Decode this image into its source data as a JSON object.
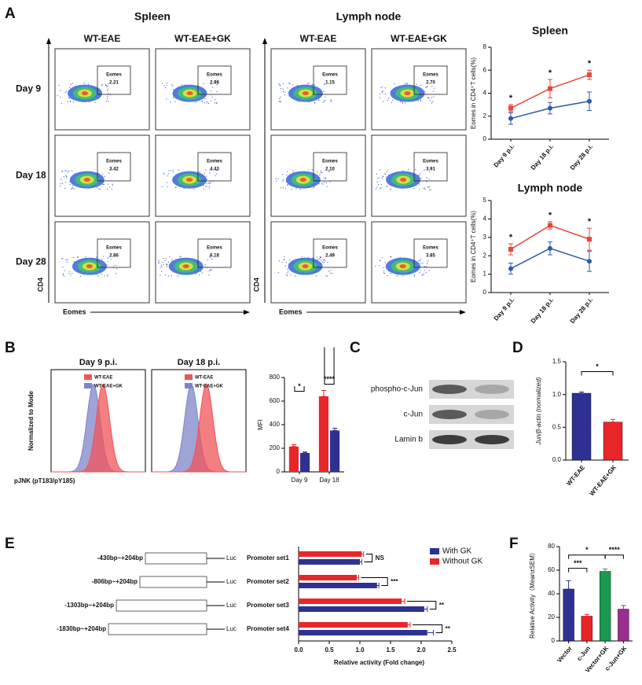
{
  "panel_labels": [
    "A",
    "B",
    "C",
    "D",
    "E",
    "F"
  ],
  "flow": {
    "groups": [
      {
        "title": "Spleen",
        "columns": [
          "WT-EAE",
          "WT-EAE+GK"
        ],
        "gates": [
          [
            "2.21",
            "2.98"
          ],
          [
            "3.42",
            "4.43"
          ],
          [
            "2.86",
            "6.18"
          ]
        ]
      },
      {
        "title": "Lymph node",
        "columns": [
          "WT-EAE",
          "WT-EAE+GK"
        ],
        "gates": [
          [
            "1.15",
            "2.70"
          ],
          [
            "2.10",
            "3.91"
          ],
          [
            "2.49",
            "3.85"
          ]
        ]
      }
    ],
    "rows": [
      "Day 9",
      "Day 18",
      "Day 28"
    ],
    "gate_label": "Eomes",
    "x_label": "Eomes",
    "y_label": "CD4"
  },
  "histograms": {
    "titles": [
      "Day 9 p.i.",
      "Day 18 p.i."
    ],
    "legend": [
      {
        "name": "WT-EAE",
        "color": "#f0545a"
      },
      {
        "name": "WT-EAE+GK",
        "color": "#7f84c8"
      }
    ],
    "y_label": "Normalized to Mode",
    "x_label": "pJNK (pT183/pY185)"
  },
  "blot": {
    "bands": [
      "phospho-c-Jun",
      "c-Jun",
      "Lamin b"
    ]
  },
  "promoters": {
    "constructs": [
      "-430bp~+204bp",
      "-806bp~+204bp",
      "-1303bp~+204bp",
      "-1830bp~+204bp"
    ],
    "reporter": "Luc"
  },
  "chart_data": [
    {
      "type": "line",
      "title": "Spleen",
      "y_label": "Eomes in CD4⁺T cells(%)",
      "categories": [
        "Day 9 p.i.",
        "Day 18 p.i.",
        "Day 28 p.i."
      ],
      "series": [
        {
          "color": "#2e5aa8",
          "values": [
            1.8,
            2.7,
            3.3
          ],
          "errors": [
            0.5,
            0.5,
            0.8
          ]
        },
        {
          "color": "#e8463c",
          "values": [
            2.7,
            4.4,
            5.6
          ],
          "errors": [
            0.3,
            0.8,
            0.4
          ]
        }
      ],
      "annotations": [
        "*",
        "*",
        "*"
      ],
      "ylim": [
        0,
        8
      ],
      "yticks": [
        0,
        2,
        4,
        6,
        8
      ]
    },
    {
      "type": "line",
      "title": "Lymph node",
      "y_label": "Eomes in CD4⁺T cells(%)",
      "categories": [
        "Day 9 p.i.",
        "Day 18 p.i.",
        "Day 28 p.i."
      ],
      "series": [
        {
          "color": "#2e5aa8",
          "values": [
            1.3,
            2.4,
            1.7
          ],
          "errors": [
            0.3,
            0.35,
            0.55
          ]
        },
        {
          "color": "#e8463c",
          "values": [
            2.35,
            3.65,
            2.9
          ],
          "errors": [
            0.3,
            0.2,
            0.6
          ]
        }
      ],
      "annotations": [
        "*",
        "*",
        "*"
      ],
      "ylim": [
        0,
        5
      ],
      "yticks": [
        0,
        1,
        2,
        3,
        4,
        5
      ]
    },
    {
      "type": "bar",
      "y_label": "MFI",
      "categories": [
        "Day 9",
        "Day 18"
      ],
      "series": [
        {
          "color": "#e8262a",
          "values": [
            215,
            640
          ],
          "errors": [
            15,
            50
          ]
        },
        {
          "color": "#2e3192",
          "values": [
            160,
            350
          ],
          "errors": [
            8,
            20
          ]
        }
      ],
      "annotations": [
        "*",
        "****"
      ],
      "ylim": [
        0,
        800
      ],
      "yticks": [
        0,
        200,
        400,
        600,
        800
      ]
    },
    {
      "type": "bar",
      "y_label": "Jun/β-actin (normalized)",
      "categories": [
        "WT-EAE",
        "WT-EAE+GK"
      ],
      "values": [
        1.02,
        0.58
      ],
      "errors": [
        0.02,
        0.04
      ],
      "colors": [
        "#2e3192",
        "#e8262a"
      ],
      "annotations": [
        "*"
      ],
      "ylim": [
        0,
        1.5
      ],
      "yticks": [
        {
          "value": 0,
          "label": "0.0"
        },
        {
          "value": 0.5,
          "label": "0.5"
        },
        {
          "value": 1,
          "label": "1.0"
        },
        {
          "value": 1.5,
          "label": "1.5"
        }
      ]
    },
    {
      "type": "hbar",
      "x_label": "Relative activity (Fold change)",
      "categories": [
        "Promoter set1",
        "Promoter set2",
        "Promoter set3",
        "Promoter set4"
      ],
      "series": [
        {
          "name": "With GK",
          "color": "#2e3192",
          "values": [
            1.0,
            1.28,
            2.05,
            2.1
          ],
          "errors": [
            0.03,
            0.03,
            0.05,
            0.1
          ]
        },
        {
          "name": "Without GK",
          "color": "#e8262a",
          "values": [
            1.03,
            0.95,
            1.68,
            1.78
          ],
          "errors": [
            0.03,
            0.03,
            0.05,
            0.04
          ]
        }
      ],
      "annotations": [
        "NS",
        "***",
        "**",
        "**"
      ],
      "xlim": [
        0,
        2.5
      ],
      "xticks": [
        {
          "value": 0,
          "label": "0.0"
        },
        {
          "value": 0.5,
          "label": "0.5"
        },
        {
          "value": 1,
          "label": "1.0"
        },
        {
          "value": 1.5,
          "label": "1.5"
        },
        {
          "value": 2,
          "label": "2.0"
        },
        {
          "value": 2.5,
          "label": "2.5"
        }
      ],
      "legend": "upper right"
    },
    {
      "type": "bar",
      "y_label": "Relative Activity（Mean±SEM）",
      "categories": [
        "Vector",
        "c-Jun",
        "Vector+GK",
        "c-Jun+GK"
      ],
      "values": [
        44,
        21,
        59,
        27
      ],
      "errors": [
        7,
        1.5,
        2,
        3
      ],
      "colors": [
        "#2e3192",
        "#e8262a",
        "#1a9a50",
        "#9b2d8f"
      ],
      "annotations": [
        "***",
        "*",
        "****"
      ],
      "ylim": [
        0,
        80
      ],
      "yticks": [
        0,
        20,
        40,
        60,
        80
      ]
    }
  ]
}
